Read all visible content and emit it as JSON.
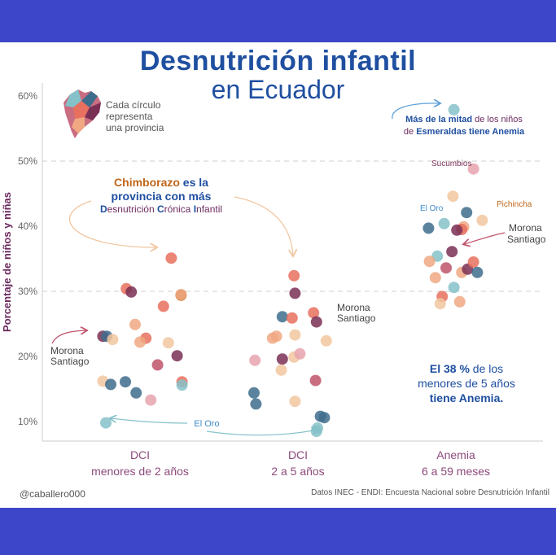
{
  "title_line1": "Desnutrición infantil",
  "title_line2": "en Ecuador",
  "handle": "@caballero000",
  "source": "Datos INEC - ENDI: Encuesta Nacional sobre Desnutrición Infantil",
  "legend_note": [
    "Cada círculo",
    "representa",
    "una provincia"
  ],
  "colors": {
    "title": "#1f4fa0",
    "ylabel": "#6b2a5e",
    "accent_orange": "#c0661a",
    "palette": [
      "#f2c7a0",
      "#f0a882",
      "#e8705e",
      "#c0536b",
      "#7a2f55",
      "#3e6d8c",
      "#85c1c9",
      "#e8a3ae"
    ]
  },
  "chart_data": {
    "type": "scatter",
    "ylabel": "Porcentaje de niños y niñas",
    "yticks": [
      "10%",
      "20%",
      "30%",
      "40%",
      "50%",
      "60%"
    ],
    "ylim": [
      0.07,
      0.61
    ],
    "categories": [
      {
        "line1": "DCI",
        "line2": "menores de 2 años"
      },
      {
        "line1": "DCI",
        "line2": "2 a 5 años"
      },
      {
        "line1": "Anemia",
        "line2": "6 a 59 meses"
      }
    ],
    "grid": "dashed at 30% and 50%",
    "points": [
      {
        "c": 0,
        "dx": -0.38,
        "y": 0.231,
        "color": "#7a2f55"
      },
      {
        "c": 0,
        "dx": -0.34,
        "y": 0.231,
        "color": "#3e6d8c"
      },
      {
        "c": 0,
        "dx": -0.28,
        "y": 0.226,
        "color": "#f2c7a0"
      },
      {
        "c": 0,
        "dx": -0.38,
        "y": 0.162,
        "color": "#f2c7a0"
      },
      {
        "c": 0,
        "dx": -0.3,
        "y": 0.157,
        "color": "#3e6d8c"
      },
      {
        "c": 0,
        "dx": -0.35,
        "y": 0.098,
        "color": "#85c1c9"
      },
      {
        "c": 0,
        "dx": -0.14,
        "y": 0.304,
        "color": "#e8705e"
      },
      {
        "c": 0,
        "dx": -0.09,
        "y": 0.299,
        "color": "#7a2f55"
      },
      {
        "c": 0,
        "dx": -0.05,
        "y": 0.249,
        "color": "#f0a882"
      },
      {
        "c": 0,
        "dx": 0.06,
        "y": 0.228,
        "color": "#e8705e"
      },
      {
        "c": 0,
        "dx": 0.0,
        "y": 0.222,
        "color": "#f0a882"
      },
      {
        "c": 0,
        "dx": -0.15,
        "y": 0.161,
        "color": "#3e6d8c"
      },
      {
        "c": 0,
        "dx": -0.04,
        "y": 0.144,
        "color": "#3e6d8c"
      },
      {
        "c": 0,
        "dx": 0.11,
        "y": 0.133,
        "color": "#e8a3ae"
      },
      {
        "c": 0,
        "dx": 0.18,
        "y": 0.187,
        "color": "#c0536b"
      },
      {
        "c": 0,
        "dx": 0.24,
        "y": 0.277,
        "color": "#e8705e"
      },
      {
        "c": 0,
        "dx": 0.29,
        "y": 0.221,
        "color": "#f2c7a0"
      },
      {
        "c": 0,
        "dx": 0.32,
        "y": 0.351,
        "color": "#e8705e"
      },
      {
        "c": 0,
        "dx": 0.42,
        "y": 0.294,
        "color": "#c0661a"
      },
      {
        "c": 0,
        "dx": 0.42,
        "y": 0.295,
        "color": "#f0a882"
      },
      {
        "c": 0,
        "dx": 0.38,
        "y": 0.201,
        "color": "#7a2f55"
      },
      {
        "c": 0,
        "dx": 0.43,
        "y": 0.161,
        "color": "#e8705e"
      },
      {
        "c": 0,
        "dx": 0.43,
        "y": 0.156,
        "color": "#85c1c9"
      },
      {
        "c": 1,
        "dx": -0.44,
        "y": 0.194,
        "color": "#e8a3ae"
      },
      {
        "c": 1,
        "dx": -0.45,
        "y": 0.144,
        "color": "#3e6d8c"
      },
      {
        "c": 1,
        "dx": -0.43,
        "y": 0.127,
        "color": "#3e6d8c"
      },
      {
        "c": 1,
        "dx": -0.26,
        "y": 0.228,
        "color": "#f0a882"
      },
      {
        "c": 1,
        "dx": -0.22,
        "y": 0.231,
        "color": "#f0a882"
      },
      {
        "c": 1,
        "dx": -0.16,
        "y": 0.261,
        "color": "#3e6d8c"
      },
      {
        "c": 1,
        "dx": -0.16,
        "y": 0.196,
        "color": "#7a2f55"
      },
      {
        "c": 1,
        "dx": -0.17,
        "y": 0.179,
        "color": "#f2c7a0"
      },
      {
        "c": 1,
        "dx": -0.06,
        "y": 0.259,
        "color": "#e8705e"
      },
      {
        "c": 1,
        "dx": -0.04,
        "y": 0.324,
        "color": "#e8705e"
      },
      {
        "c": 1,
        "dx": -0.03,
        "y": 0.297,
        "color": "#7a2f55"
      },
      {
        "c": 1,
        "dx": -0.03,
        "y": 0.233,
        "color": "#f2c7a0"
      },
      {
        "c": 1,
        "dx": -0.04,
        "y": 0.199,
        "color": "#f2c7a0"
      },
      {
        "c": 1,
        "dx": 0.02,
        "y": 0.204,
        "color": "#e8a3ae"
      },
      {
        "c": 1,
        "dx": -0.03,
        "y": 0.131,
        "color": "#f2c7a0"
      },
      {
        "c": 1,
        "dx": 0.16,
        "y": 0.267,
        "color": "#e8705e"
      },
      {
        "c": 1,
        "dx": 0.19,
        "y": 0.253,
        "color": "#7a2f55"
      },
      {
        "c": 1,
        "dx": 0.18,
        "y": 0.163,
        "color": "#c0536b"
      },
      {
        "c": 1,
        "dx": 0.29,
        "y": 0.224,
        "color": "#f2c7a0"
      },
      {
        "c": 1,
        "dx": 0.23,
        "y": 0.108,
        "color": "#3e6d8c"
      },
      {
        "c": 1,
        "dx": 0.27,
        "y": 0.106,
        "color": "#3e6d8c"
      },
      {
        "c": 1,
        "dx": 0.2,
        "y": 0.09,
        "color": "#85c1c9"
      },
      {
        "c": 1,
        "dx": 0.19,
        "y": 0.085,
        "color": "#85c1c9"
      },
      {
        "c": 2,
        "dx": -0.02,
        "y": 0.579,
        "color": "#85c1c9"
      },
      {
        "c": 2,
        "dx": 0.18,
        "y": 0.488,
        "color": "#e8a3ae"
      },
      {
        "c": 2,
        "dx": -0.03,
        "y": 0.446,
        "color": "#f2c7a0"
      },
      {
        "c": 2,
        "dx": 0.11,
        "y": 0.421,
        "color": "#3e6d8c"
      },
      {
        "c": 2,
        "dx": 0.27,
        "y": 0.409,
        "color": "#f2c7a0"
      },
      {
        "c": 2,
        "dx": 0.08,
        "y": 0.399,
        "color": "#f0a882"
      },
      {
        "c": 2,
        "dx": 0.06,
        "y": 0.395,
        "color": "#e8705e"
      },
      {
        "c": 2,
        "dx": -0.12,
        "y": 0.404,
        "color": "#85c1c9"
      },
      {
        "c": 2,
        "dx": -0.28,
        "y": 0.397,
        "color": "#3e6d8c"
      },
      {
        "c": 2,
        "dx": 0.01,
        "y": 0.394,
        "color": "#7a2f55"
      },
      {
        "c": 2,
        "dx": -0.04,
        "y": 0.361,
        "color": "#7a2f55"
      },
      {
        "c": 2,
        "dx": -0.19,
        "y": 0.354,
        "color": "#85c1c9"
      },
      {
        "c": 2,
        "dx": -0.27,
        "y": 0.346,
        "color": "#f0a882"
      },
      {
        "c": 2,
        "dx": -0.1,
        "y": 0.336,
        "color": "#c0536b"
      },
      {
        "c": 2,
        "dx": 0.06,
        "y": 0.329,
        "color": "#f0a882"
      },
      {
        "c": 2,
        "dx": 0.12,
        "y": 0.334,
        "color": "#7a2f55"
      },
      {
        "c": 2,
        "dx": 0.18,
        "y": 0.345,
        "color": "#e8705e"
      },
      {
        "c": 2,
        "dx": 0.22,
        "y": 0.329,
        "color": "#3e6d8c"
      },
      {
        "c": 2,
        "dx": -0.21,
        "y": 0.321,
        "color": "#f0a882"
      },
      {
        "c": 2,
        "dx": -0.02,
        "y": 0.306,
        "color": "#85c1c9"
      },
      {
        "c": 2,
        "dx": -0.14,
        "y": 0.292,
        "color": "#e8705e"
      },
      {
        "c": 2,
        "dx": 0.04,
        "y": 0.284,
        "color": "#f0a882"
      },
      {
        "c": 2,
        "dx": -0.16,
        "y": 0.281,
        "color": "#f2c7a0"
      }
    ],
    "annotations": {
      "chimborazo": {
        "part1": "Chimborazo",
        "part2": " es la",
        "line2": "provincia con más",
        "line3_pre": "D",
        "line3_a": "esnutrición ",
        "line3_b": "C",
        "line3_c": "rónica ",
        "line3_d": "I",
        "line3_e": "nfantil"
      },
      "morona_left": [
        "Morona",
        "Santiago"
      ],
      "morona_mid": [
        "Morona",
        "Santiago"
      ],
      "morona_right": [
        "Morona",
        "Santiago"
      ],
      "el_oro_bottom": "El Oro",
      "el_oro_right": "El Oro",
      "sucumbios": "Sucumbios",
      "pichincha": "Pichincha",
      "esmeraldas": {
        "a": "Más de la mitad",
        "b": " de los niños",
        "c": "de ",
        "d": "Esmeraldas tiene Anemia"
      },
      "anemia38": {
        "a": "El 38 %",
        "b": " de los",
        "line2": "menores de 5 años",
        "line3": "tiene Anemia."
      }
    }
  }
}
